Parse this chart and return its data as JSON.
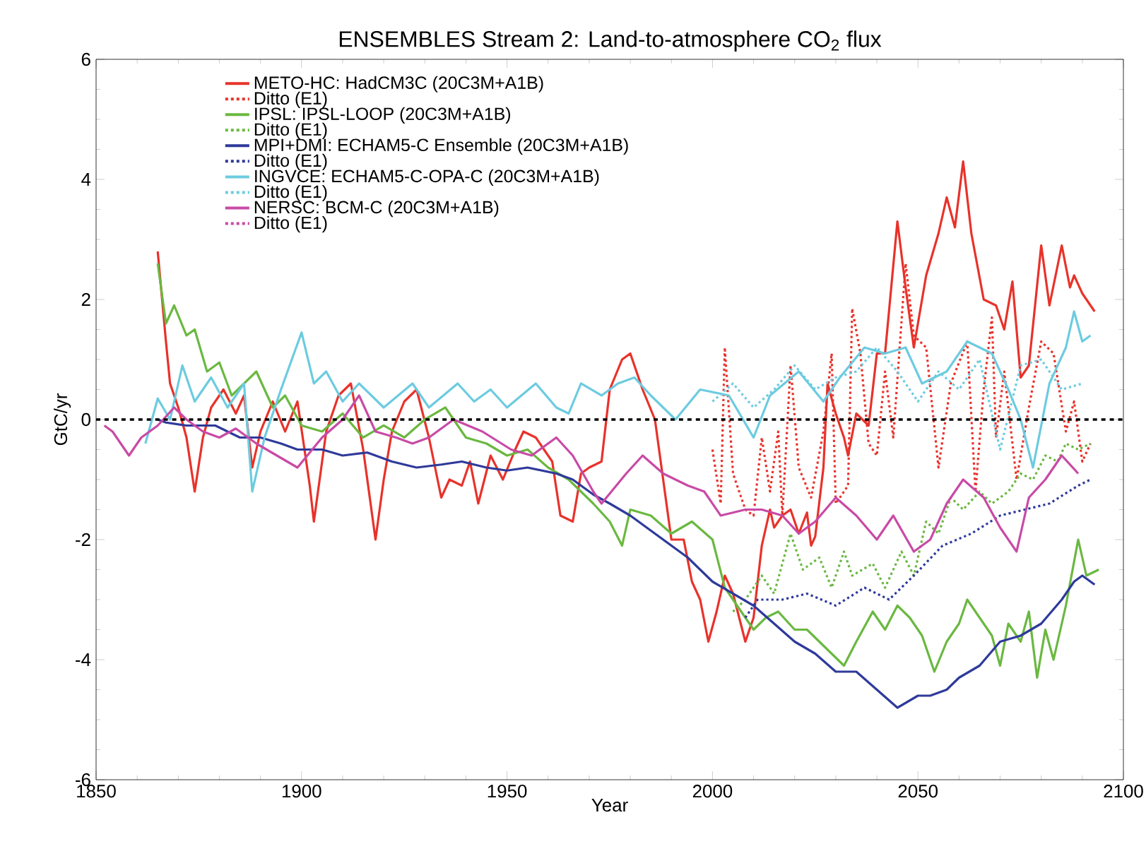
{
  "chart_data": {
    "type": "line",
    "title": "ENSEMBLES Stream 2: Land-to-atmosphere CO$_{2}$ flux",
    "xlabel": "Year",
    "ylabel": "GtC/yr",
    "xlim": [
      1850,
      2100
    ],
    "ylim": [
      -6,
      6
    ],
    "xticks": [
      1850,
      1900,
      1950,
      2000,
      2050,
      2100
    ],
    "yticks": [
      -6,
      -4,
      -2,
      0,
      2,
      4,
      6
    ],
    "grid": false,
    "legend": "top left",
    "marker": "none",
    "ref_lines": [
      {
        "axis": "y",
        "value": 0,
        "color": "#000000",
        "line_style": "dashed"
      }
    ],
    "series": [
      {
        "name": "METO-HC: HadCM3C (20C3M+A1B)",
        "color": "#e8322a",
        "line_style": "solid",
        "x": [
          1865,
          1867,
          1868,
          1870,
          1872,
          1874,
          1876,
          1878,
          1881,
          1884,
          1886,
          1888,
          1890,
          1893,
          1896,
          1899,
          1902,
          1903,
          1906,
          1909,
          1912,
          1915,
          1918,
          1920,
          1922,
          1925,
          1928,
          1931,
          1934,
          1936,
          1939,
          1941,
          1943,
          1946,
          1949,
          1952,
          1954,
          1957,
          1959,
          1961,
          1963,
          1966,
          1968,
          1970,
          1973,
          1975,
          1978,
          1980,
          1983,
          1986,
          1988,
          1990,
          1993,
          1995,
          1997,
          1999,
          2001,
          2003,
          2005,
          2008,
          2010,
          2012,
          2014,
          2015,
          2017,
          2019,
          2021,
          2023,
          2024,
          2025,
          2027,
          2028,
          2030,
          2032,
          2033,
          2035,
          2038,
          2040,
          2042,
          2045,
          2047,
          2049,
          2052,
          2055,
          2057,
          2059,
          2061,
          2063,
          2066,
          2069,
          2071,
          2073,
          2075,
          2077,
          2080,
          2082,
          2085,
          2087,
          2088,
          2090,
          2093
        ],
        "values": [
          2.8,
          1.3,
          0.6,
          0.2,
          -0.3,
          -1.2,
          -0.3,
          0.2,
          0.5,
          0.1,
          0.4,
          -0.8,
          -0.2,
          0.3,
          -0.2,
          0.3,
          -1.1,
          -1.7,
          -0.2,
          0.4,
          0.6,
          -0.5,
          -2.0,
          -1.0,
          -0.2,
          0.3,
          0.5,
          -0.3,
          -1.3,
          -1.0,
          -1.1,
          -0.7,
          -1.4,
          -0.6,
          -1.0,
          -0.5,
          -0.2,
          -0.3,
          -0.5,
          -0.7,
          -1.6,
          -1.7,
          -0.9,
          -0.8,
          -0.7,
          0.5,
          1.0,
          1.1,
          0.5,
          0.0,
          -1.0,
          -2.0,
          -2.0,
          -2.7,
          -3.0,
          -3.7,
          -3.2,
          -2.6,
          -2.9,
          -3.7,
          -3.3,
          -2.1,
          -1.5,
          -1.8,
          -1.6,
          -1.5,
          -1.9,
          -1.55,
          -2.1,
          -1.95,
          -0.8,
          0.6,
          0.1,
          -0.3,
          -0.6,
          0.1,
          -0.1,
          1.1,
          1.1,
          3.3,
          2.2,
          1.2,
          2.4,
          3.1,
          3.7,
          3.2,
          4.3,
          3.1,
          2.0,
          1.9,
          1.5,
          2.3,
          0.7,
          0.9,
          2.9,
          1.9,
          2.9,
          2.2,
          2.4,
          2.1,
          1.8
        ]
      },
      {
        "name": "Ditto (E1)",
        "color": "#e8322a",
        "line_style": "dotted",
        "x": [
          2000,
          2002,
          2003,
          2005,
          2008,
          2010,
          2012,
          2014,
          2016,
          2017,
          2019,
          2021,
          2024,
          2027,
          2029,
          2030,
          2033,
          2034,
          2036,
          2038,
          2040,
          2042,
          2044,
          2047,
          2049,
          2052,
          2055,
          2058,
          2062,
          2064,
          2066,
          2068,
          2069,
          2071,
          2074,
          2077,
          2080,
          2083,
          2086,
          2088,
          2090,
          2092
        ],
        "values": [
          -0.5,
          -1.4,
          1.2,
          -0.9,
          -1.5,
          -1.6,
          -0.3,
          -1.2,
          -0.2,
          -1.6,
          0.9,
          -0.8,
          -1.3,
          -0.2,
          1.1,
          -1.4,
          -1.1,
          1.85,
          1.1,
          -0.4,
          -0.6,
          0.8,
          -0.3,
          2.6,
          1.4,
          1.2,
          -0.8,
          0.6,
          1.3,
          -1.2,
          0.5,
          1.7,
          -0.3,
          0.8,
          -1.0,
          0.2,
          1.3,
          1.1,
          -0.2,
          0.3,
          -0.7,
          -0.4
        ]
      },
      {
        "name": "IPSL: IPSL-LOOP (20C3M+A1B)",
        "color": "#6ab840",
        "line_style": "solid",
        "x": [
          1865,
          1867,
          1869,
          1872,
          1874,
          1877,
          1880,
          1883,
          1886,
          1889,
          1893,
          1896,
          1900,
          1905,
          1910,
          1915,
          1920,
          1925,
          1930,
          1935,
          1940,
          1945,
          1950,
          1955,
          1960,
          1965,
          1968,
          1971,
          1975,
          1978,
          1980,
          1985,
          1990,
          1995,
          2000,
          2003,
          2006,
          2010,
          2013,
          2016,
          2020,
          2023,
          2026,
          2029,
          2032,
          2035,
          2039,
          2042,
          2045,
          2048,
          2051,
          2054,
          2057,
          2060,
          2062,
          2065,
          2068,
          2070,
          2072,
          2075,
          2077,
          2079,
          2081,
          2083,
          2086,
          2089,
          2091,
          2094
        ],
        "values": [
          2.6,
          1.6,
          1.9,
          1.4,
          1.5,
          0.8,
          0.95,
          0.4,
          0.6,
          0.8,
          0.2,
          0.4,
          -0.1,
          -0.2,
          0.1,
          -0.3,
          -0.1,
          -0.3,
          0.0,
          0.2,
          -0.3,
          -0.4,
          -0.6,
          -0.5,
          -0.8,
          -1.0,
          -1.2,
          -1.4,
          -1.7,
          -2.1,
          -1.5,
          -1.6,
          -1.9,
          -1.7,
          -2.0,
          -2.8,
          -3.1,
          -3.5,
          -3.3,
          -3.2,
          -3.5,
          -3.5,
          -3.7,
          -3.9,
          -4.1,
          -3.7,
          -3.2,
          -3.5,
          -3.1,
          -3.3,
          -3.6,
          -4.2,
          -3.7,
          -3.4,
          -3.0,
          -3.3,
          -3.6,
          -4.1,
          -3.4,
          -3.7,
          -3.2,
          -4.3,
          -3.5,
          -4.0,
          -3.1,
          -2.0,
          -2.6,
          -2.5
        ]
      },
      {
        "name": "Ditto (E1)",
        "color": "#6ab840",
        "line_style": "dotted",
        "x": [
          2005,
          2008,
          2012,
          2015,
          2019,
          2022,
          2026,
          2029,
          2032,
          2034,
          2039,
          2042,
          2046,
          2049,
          2052,
          2055,
          2058,
          2061,
          2065,
          2068,
          2072,
          2075,
          2078,
          2081,
          2084,
          2086,
          2089,
          2092
        ],
        "values": [
          -3.2,
          -3.0,
          -2.6,
          -2.9,
          -1.9,
          -2.5,
          -2.3,
          -2.8,
          -2.2,
          -2.6,
          -2.4,
          -2.8,
          -2.2,
          -2.6,
          -1.7,
          -1.9,
          -1.3,
          -1.5,
          -1.2,
          -1.4,
          -1.2,
          -0.9,
          -1.0,
          -0.6,
          -0.7,
          -0.4,
          -0.5,
          -0.4
        ]
      },
      {
        "name": "MPI+DMI: ECHAM5-C Ensemble (20C3M+A1B)",
        "color": "#2e3a9a",
        "line_style": "solid",
        "x": [
          1865,
          1867,
          1872,
          1879,
          1885,
          1890,
          1895,
          1899,
          1905,
          1910,
          1916,
          1922,
          1928,
          1934,
          1939,
          1945,
          1950,
          1955,
          1962,
          1966,
          1971,
          1975,
          1980,
          1984,
          1990,
          1994,
          2000,
          2005,
          2010,
          2015,
          2020,
          2025,
          2030,
          2035,
          2040,
          2045,
          2050,
          2053,
          2057,
          2060,
          2065,
          2070,
          2075,
          2080,
          2085,
          2088,
          2090,
          2093
        ],
        "values": [
          0.0,
          -0.05,
          -0.1,
          -0.1,
          -0.3,
          -0.3,
          -0.4,
          -0.5,
          -0.5,
          -0.6,
          -0.55,
          -0.7,
          -0.8,
          -0.75,
          -0.7,
          -0.8,
          -0.85,
          -0.8,
          -0.9,
          -1.0,
          -1.25,
          -1.4,
          -1.6,
          -1.8,
          -2.1,
          -2.3,
          -2.7,
          -2.9,
          -3.1,
          -3.4,
          -3.7,
          -3.9,
          -4.2,
          -4.2,
          -4.5,
          -4.8,
          -4.6,
          -4.6,
          -4.5,
          -4.3,
          -4.1,
          -3.7,
          -3.6,
          -3.4,
          -3.0,
          -2.7,
          -2.6,
          -2.75
        ]
      },
      {
        "name": "Ditto (E1)",
        "color": "#2e3a9a",
        "line_style": "dotted",
        "x": [
          2008,
          2011,
          2017,
          2023,
          2030,
          2037,
          2043,
          2049,
          2056,
          2063,
          2070,
          2076,
          2082,
          2089,
          2092
        ],
        "values": [
          -3.3,
          -3.0,
          -3.0,
          -2.9,
          -3.1,
          -2.8,
          -3.0,
          -2.6,
          -2.1,
          -1.9,
          -1.6,
          -1.5,
          -1.4,
          -1.1,
          -1.0
        ]
      },
      {
        "name": "INGVCE: ECHAM5-C-OPA-C (20C3M+A1B)",
        "color": "#6ccbe0",
        "line_style": "solid",
        "x": [
          1862,
          1865,
          1868,
          1871,
          1874,
          1878,
          1882,
          1886,
          1888,
          1891,
          1895,
          1900,
          1903,
          1906,
          1910,
          1914,
          1920,
          1927,
          1931,
          1938,
          1942,
          1946,
          1950,
          1957,
          1962,
          1965,
          1968,
          1973,
          1977,
          1981,
          1985,
          1991,
          1997,
          2004,
          2010,
          2014,
          2021,
          2027,
          2031,
          2037,
          2042,
          2047,
          2051,
          2057,
          2062,
          2068,
          2072,
          2075,
          2078,
          2082,
          2086,
          2088,
          2090,
          2092
        ],
        "values": [
          -0.4,
          0.35,
          0.0,
          0.9,
          0.3,
          0.7,
          0.2,
          0.6,
          -1.2,
          -0.3,
          0.5,
          1.45,
          0.6,
          0.8,
          0.3,
          0.6,
          0.2,
          0.6,
          0.2,
          0.6,
          0.3,
          0.5,
          0.2,
          0.6,
          0.2,
          0.1,
          0.6,
          0.4,
          0.6,
          0.7,
          0.4,
          0.0,
          0.5,
          0.4,
          -0.3,
          0.4,
          0.8,
          0.3,
          0.7,
          1.2,
          1.1,
          1.2,
          0.6,
          0.8,
          1.3,
          1.1,
          0.5,
          0.0,
          -0.8,
          0.6,
          1.2,
          1.8,
          1.3,
          1.4
        ]
      },
      {
        "name": "Ditto (E1)",
        "color": "#6ccbe0",
        "line_style": "dotted",
        "x": [
          2000,
          2005,
          2010,
          2015,
          2020,
          2025,
          2030,
          2035,
          2040,
          2045,
          2050,
          2055,
          2060,
          2065,
          2070,
          2075,
          2080,
          2085,
          2090
        ],
        "values": [
          0.3,
          0.6,
          0.2,
          0.5,
          0.9,
          0.5,
          0.7,
          0.8,
          1.2,
          0.8,
          0.3,
          0.8,
          0.5,
          1.0,
          -0.5,
          0.9,
          1.0,
          0.5,
          0.6
        ]
      },
      {
        "name": "NERSC: BCM-C (20C3M+A1B)",
        "color": "#c84aa6",
        "line_style": "solid",
        "x": [
          1852,
          1854,
          1858,
          1861,
          1865,
          1869,
          1872,
          1876,
          1880,
          1884,
          1889,
          1894,
          1899,
          1905,
          1910,
          1914,
          1918,
          1923,
          1927,
          1931,
          1937,
          1944,
          1951,
          1956,
          1962,
          1966,
          1971,
          1973,
          1979,
          1983,
          1988,
          1994,
          1998,
          2002,
          2008,
          2012,
          2017,
          2021,
          2025,
          2030,
          2035,
          2040,
          2044,
          2049,
          2053,
          2057,
          2061,
          2066,
          2070,
          2074,
          2077,
          2081,
          2085,
          2089
        ],
        "values": [
          -0.1,
          -0.2,
          -0.6,
          -0.3,
          -0.1,
          0.2,
          0.0,
          -0.2,
          -0.3,
          -0.15,
          -0.4,
          -0.6,
          -0.8,
          -0.3,
          0.0,
          0.4,
          -0.2,
          -0.3,
          -0.4,
          -0.3,
          0.0,
          -0.2,
          -0.5,
          -0.6,
          -0.3,
          -0.6,
          -1.2,
          -1.4,
          -0.9,
          -0.6,
          -0.9,
          -1.1,
          -1.2,
          -1.6,
          -1.5,
          -1.5,
          -1.6,
          -1.9,
          -1.7,
          -1.3,
          -1.6,
          -2.0,
          -1.6,
          -2.2,
          -2.0,
          -1.4,
          -1.0,
          -1.3,
          -1.8,
          -2.2,
          -1.3,
          -1.0,
          -0.6,
          -0.9
        ]
      },
      {
        "name": "Ditto (E1)",
        "color": "#c84aa6",
        "line_style": "dotted"
      }
    ]
  }
}
